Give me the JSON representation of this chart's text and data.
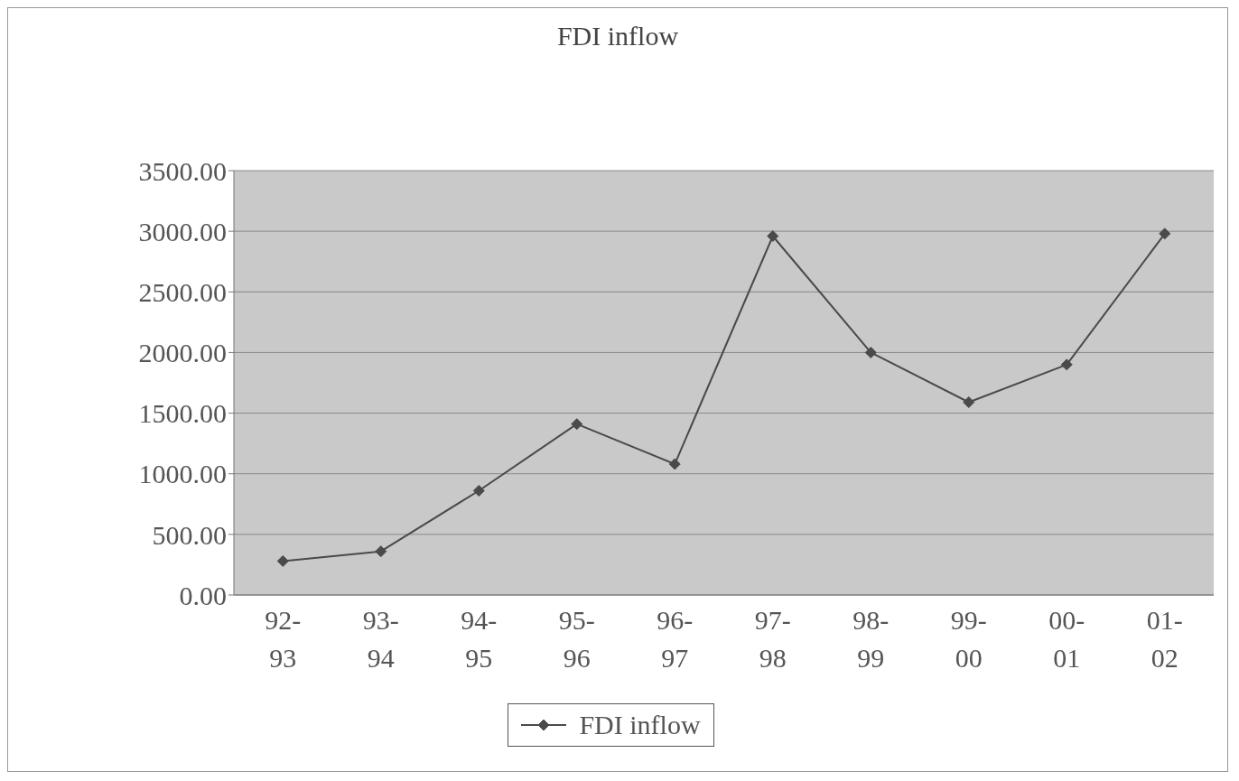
{
  "chart_data": {
    "type": "line",
    "title": "FDI inflow",
    "categories": [
      "92-93",
      "93-94",
      "94-95",
      "95-96",
      "96-97",
      "97-98",
      "98-99",
      "99-00",
      "00-01",
      "01-02"
    ],
    "series": [
      {
        "name": "FDI inflow",
        "color": "#4a4a4a",
        "values": [
          280,
          360,
          860,
          1410,
          1080,
          2960,
          2000,
          1590,
          1900,
          2980
        ]
      }
    ],
    "ylim": [
      0,
      3500
    ],
    "yticks": [
      {
        "value": 0,
        "label": "0.00"
      },
      {
        "value": 500,
        "label": "500.00"
      },
      {
        "value": 1000,
        "label": "1000.00"
      },
      {
        "value": 1500,
        "label": "1500.00"
      },
      {
        "value": 2000,
        "label": "2000.00"
      },
      {
        "value": 2500,
        "label": "2500.00"
      },
      {
        "value": 3000,
        "label": "3000.00"
      },
      {
        "value": 3500,
        "label": "3500.00"
      }
    ],
    "grid": "y",
    "legend": "bottom",
    "marker": "diamond",
    "line_style": "solid"
  }
}
